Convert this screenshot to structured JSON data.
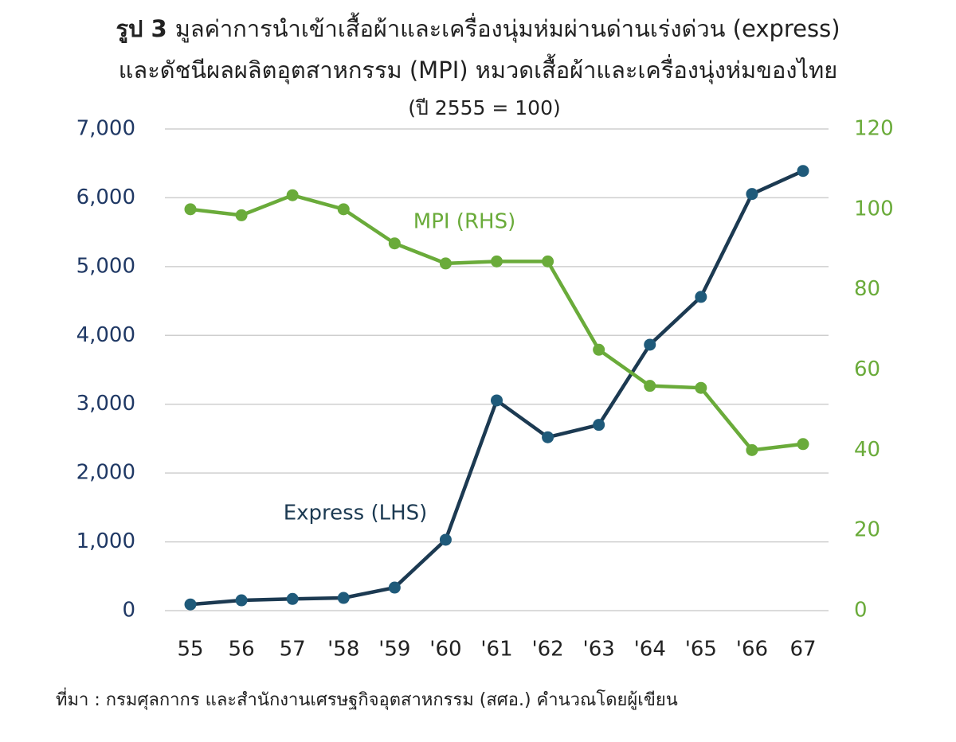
{
  "chart_data": {
    "type": "line",
    "figure_label": "รูป 3",
    "title": [
      "มูลค่าการนำเข้าเสื้อผ้าและเครื่องนุ่มห่มผ่านด่านเร่งด่วน  (express)",
      "และดัชนีผลผลิตอุตสาหกรรม (MPI)  หมวดเสื้อผ้าและเครื่องนุ่งห่มของไทย"
    ],
    "subtitle": "(ปี 2555 = 100)",
    "source": "ที่มา : กรมศุลกากร และสำนักงานเศรษฐกิจอุตสาหกรรม (สศอ.) คำนวณโดยผู้เขียน",
    "categories": [
      "55",
      "56",
      "57",
      "'58",
      "'59",
      "'60",
      "'61",
      "'62",
      "'63",
      "'64",
      "'65",
      "'66",
      "67"
    ],
    "series": [
      {
        "name": "Express (LHS)",
        "color": "#1c3a52",
        "marker_color": "#1f5a7a",
        "axis": "y",
        "values": [
          90,
          150,
          170,
          185,
          335,
          1030,
          3055,
          2520,
          2700,
          3865,
          4560,
          6055,
          6390
        ]
      },
      {
        "name": "MPI (RHS)",
        "color": "#6aab3a",
        "marker_color": "#6aab3a",
        "axis": "y2",
        "values": [
          100,
          98.5,
          103.5,
          100,
          91.5,
          86.5,
          87,
          87,
          65,
          56,
          55.5,
          40,
          41.5
        ]
      }
    ],
    "ylim": [
      0,
      7000
    ],
    "yticks": [
      0,
      {
        "value": 1000,
        "label": "1,000"
      },
      {
        "value": 2000,
        "label": "2,000"
      },
      {
        "value": 3000,
        "label": "3,000"
      },
      {
        "value": 4000,
        "label": "4,000"
      },
      {
        "value": 5000,
        "label": "5,000"
      },
      {
        "value": 6000,
        "label": "6,000"
      },
      {
        "value": 7000,
        "label": "7,000"
      }
    ],
    "y2lim": [
      0,
      120
    ],
    "y2ticks": [
      0,
      20,
      40,
      60,
      80,
      100,
      120
    ],
    "grid": true
  }
}
